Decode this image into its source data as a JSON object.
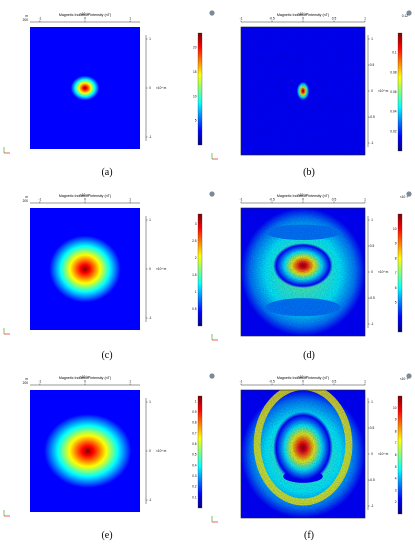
{
  "figure": {
    "panels": [
      {
        "id": "a",
        "caption": "(a)",
        "plot_title": "Magnetic Induction Intensity (nT)",
        "x_exponent_label": "×10⁴ m",
        "y_exponent_label": "×10⁴ m",
        "unit_label": "m",
        "corner_value": "200",
        "x_ticks": [
          "-1",
          "0",
          "1"
        ],
        "y_ticks": [
          "1",
          "0",
          "-1"
        ],
        "colorbar_ticks": [
          "20",
          "15",
          "10",
          "5"
        ],
        "colorbar_range": [
          0,
          23
        ],
        "blob": {
          "cx": 0.0,
          "cy": 0.0,
          "rx": 0.18,
          "ry": 0.14,
          "peak": 1.0
        },
        "style": "clean"
      },
      {
        "id": "b",
        "caption": "(b)",
        "plot_title": "Magnetic Induction Intensity (nT)",
        "x_exponent_label": "×10⁴ m",
        "y_exponent_label": "×10⁴ m",
        "corner_value": "0.12",
        "x_ticks": [
          "-1",
          "-0.5",
          "0",
          "0.5",
          "1"
        ],
        "y_ticks": [
          "1",
          "0.5",
          "0",
          "-0.5",
          "-1"
        ],
        "colorbar_ticks": [
          "0.1",
          "0.08",
          "0.06",
          "0.04",
          "0.02"
        ],
        "colorbar_range": [
          0,
          0.12
        ],
        "blob": {
          "cx": 0.0,
          "cy": 0.0,
          "rx": 0.07,
          "ry": 0.1,
          "peak": 1.0
        },
        "style": "noisy"
      },
      {
        "id": "c",
        "caption": "(c)",
        "plot_title": "Magnetic Induction Intensity (nT)",
        "x_exponent_label": "×10⁴ m",
        "y_exponent_label": "×10⁴ m",
        "unit_label": "m",
        "corner_value": "200",
        "x_ticks": [
          "-1",
          "0",
          "1"
        ],
        "y_ticks": [
          "1",
          "0",
          "-1"
        ],
        "colorbar_ticks": [
          "3",
          "2.5",
          "2",
          "1.5",
          "1",
          "0.5"
        ],
        "colorbar_range": [
          0,
          3.3
        ],
        "blob": {
          "cx": 0.0,
          "cy": 0.0,
          "rx": 0.45,
          "ry": 0.38,
          "peak": 1.0
        },
        "style": "clean"
      },
      {
        "id": "d",
        "caption": "(d)",
        "plot_title": "Magnetic Induction Intensity (nT)",
        "x_exponent_label": "×10⁴ m",
        "y_exponent_label": "×10⁴ m",
        "corner_value": "×10⁻³",
        "x_ticks": [
          "-1",
          "-0.5",
          "0",
          "0.5",
          "1"
        ],
        "y_ticks": [
          "1",
          "0.5",
          "0",
          "-0.5",
          "-1"
        ],
        "colorbar_ticks": [
          "10",
          "9",
          "8",
          "7",
          "6",
          "5"
        ],
        "colorbar_range": [
          3,
          11
        ],
        "blob": {
          "cx": 0.0,
          "cy": 0.1,
          "rx": 0.3,
          "ry": 0.22,
          "peak": 1.0
        },
        "style": "rings"
      },
      {
        "id": "e",
        "caption": "(e)",
        "plot_title": "Magnetic Induction Intensity (nT)",
        "x_exponent_label": "×10⁴ m",
        "y_exponent_label": "×10⁴ m",
        "unit_label": "m",
        "corner_value": "200",
        "x_ticks": [
          "-1",
          "0",
          "1"
        ],
        "y_ticks": [
          "1",
          "0",
          "-1"
        ],
        "colorbar_ticks": [
          "1",
          "0.9",
          "0.8",
          "0.7",
          "0.6",
          "0.5",
          "0.4",
          "0.3",
          "0.2",
          "0.1"
        ],
        "colorbar_range": [
          0,
          1.05
        ],
        "blob": {
          "cx": 0.05,
          "cy": 0.0,
          "rx": 0.55,
          "ry": 0.42,
          "peak": 1.0
        },
        "style": "clean"
      },
      {
        "id": "f",
        "caption": "(f)",
        "plot_title": "Magnetic Induction Intensity (nT)",
        "x_exponent_label": "×10⁴ m",
        "y_exponent_label": "×10⁴ m",
        "corner_value": "×10⁻³",
        "x_ticks": [
          "-1",
          "-0.5",
          "0",
          "0.5",
          "1"
        ],
        "y_ticks": [
          "1",
          "0.5",
          "0",
          "-0.5",
          "-1"
        ],
        "colorbar_ticks": [
          "10",
          "9",
          "8",
          "7",
          "6",
          "5",
          "4",
          "3",
          "2"
        ],
        "colorbar_range": [
          1,
          11
        ],
        "blob": {
          "cx": 0.0,
          "cy": 0.1,
          "rx": 0.3,
          "ry": 0.35,
          "peak": 1.0
        },
        "style": "ellipse"
      }
    ],
    "colormap": [
      "#00007f",
      "#0000ff",
      "#007fff",
      "#00ffff",
      "#7fff7f",
      "#ffff00",
      "#ff7f00",
      "#ff0000",
      "#7f0000"
    ]
  }
}
